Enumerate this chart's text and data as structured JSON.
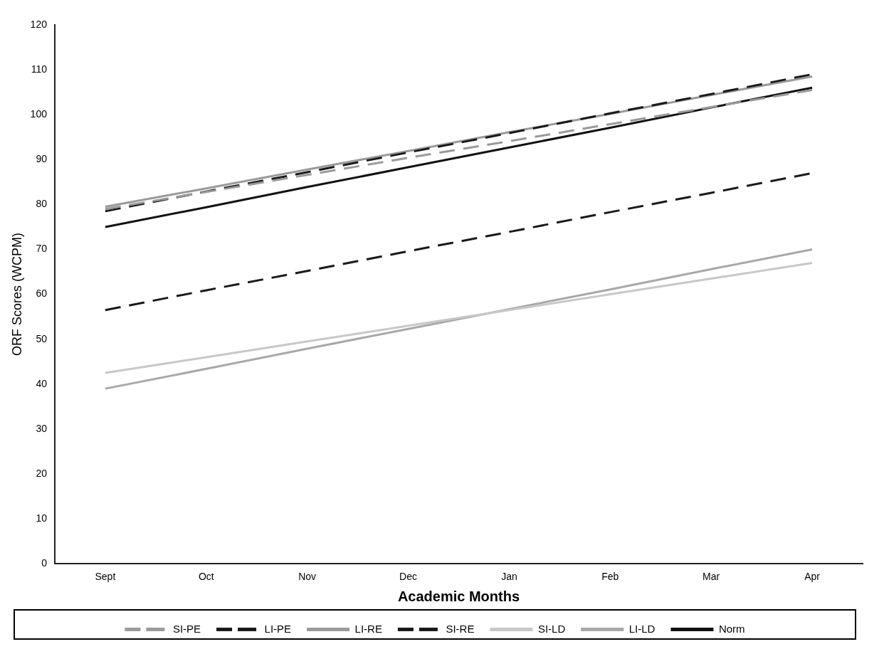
{
  "chart_data": {
    "type": "line",
    "xlabel": "Academic Months",
    "ylabel": "ORF Scores (WCPM)",
    "categories": [
      "Sept",
      "Oct",
      "Nov",
      "Dec",
      "Jan",
      "Feb",
      "Mar",
      "Apr"
    ],
    "ylim": [
      0,
      120
    ],
    "yticks": [
      0,
      10,
      20,
      30,
      40,
      50,
      60,
      70,
      80,
      90,
      100,
      110,
      120
    ],
    "grid": false,
    "legend": "bottom",
    "marker": "none",
    "series": [
      {
        "name": "SI-PE",
        "color": "#9a9a9a",
        "line_style": "dashed",
        "values": [
          79,
          82.8,
          86.6,
          90.4,
          94.1,
          97.9,
          101.7,
          105.5
        ]
      },
      {
        "name": "LI-PE",
        "color": "#1a1a1a",
        "line_style": "dashed",
        "values": [
          78.5,
          82.9,
          87.2,
          91.6,
          95.9,
          100.3,
          104.6,
          109
        ]
      },
      {
        "name": "LI-RE",
        "color": "#9a9a9a",
        "line_style": "solid",
        "values": [
          79.5,
          83.6,
          87.8,
          91.9,
          96.1,
          100.2,
          104.4,
          108.5
        ]
      },
      {
        "name": "SI-RE",
        "color": "#1a1a1a",
        "line_style": "dashed",
        "values": [
          56.5,
          60.9,
          65.2,
          69.6,
          73.9,
          78.3,
          82.6,
          87
        ]
      },
      {
        "name": "SI-LD",
        "color": "#c8c8c8",
        "line_style": "solid",
        "values": [
          42.5,
          46,
          49.5,
          53,
          56.5,
          60,
          63.5,
          67
        ]
      },
      {
        "name": "LI-LD",
        "color": "#a8a8a8",
        "line_style": "solid",
        "values": [
          39,
          43.4,
          47.9,
          52.3,
          56.7,
          61.1,
          65.6,
          70
        ]
      },
      {
        "name": "Norm",
        "color": "#111111",
        "line_style": "solid",
        "values": [
          75,
          79.4,
          83.9,
          88.3,
          92.7,
          97.1,
          101.6,
          106
        ]
      }
    ]
  }
}
